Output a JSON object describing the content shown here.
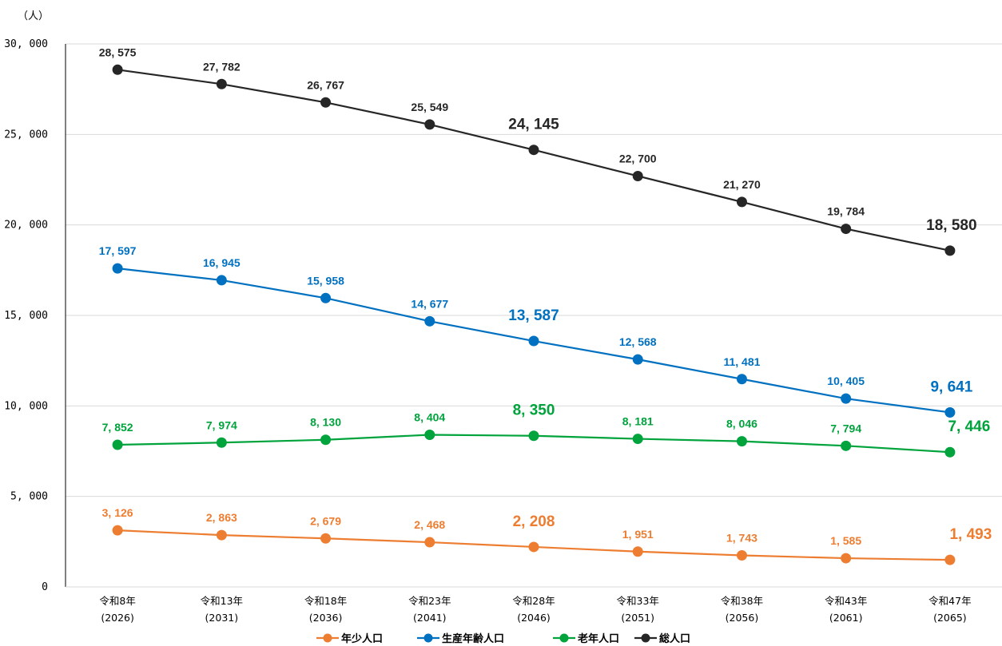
{
  "chart_data": {
    "type": "line",
    "unit_label": "（人）",
    "ylim": [
      0,
      30000
    ],
    "y_ticks": [
      {
        "value": 0,
        "label": "0"
      },
      {
        "value": 5000,
        "label": "5, 000"
      },
      {
        "value": 10000,
        "label": "10, 000"
      },
      {
        "value": 15000,
        "label": "15, 000"
      },
      {
        "value": 20000,
        "label": "20, 000"
      },
      {
        "value": 25000,
        "label": "25, 000"
      },
      {
        "value": 30000,
        "label": "30, 000"
      }
    ],
    "grid": true,
    "legend_position": "bottom",
    "categories": [
      {
        "era": "令和8年",
        "year": "(2026)"
      },
      {
        "era": "令和13年",
        "year": "(2031)"
      },
      {
        "era": "令和18年",
        "year": "(2036)"
      },
      {
        "era": "令和23年",
        "year": "(2041)"
      },
      {
        "era": "令和28年",
        "year": "(2046)"
      },
      {
        "era": "令和33年",
        "year": "(2051)"
      },
      {
        "era": "令和38年",
        "year": "(2056)"
      },
      {
        "era": "令和43年",
        "year": "(2061)"
      },
      {
        "era": "令和47年",
        "year": "(2065)"
      }
    ],
    "series": [
      {
        "name": "年少人口",
        "color": "#ED7D31",
        "values": [
          3126,
          2863,
          2679,
          2468,
          2208,
          1951,
          1743,
          1585,
          1493
        ],
        "labels": [
          "3, 126",
          "2, 863",
          "2, 679",
          "2, 468",
          "2, 208",
          "1, 951",
          "1, 743",
          "1, 585",
          "1, 493"
        ]
      },
      {
        "name": "生産年齢人口",
        "color": "#0070C0",
        "values": [
          17597,
          16945,
          15958,
          14677,
          13587,
          12568,
          11481,
          10405,
          9641
        ],
        "labels": [
          "17, 597",
          "16, 945",
          "15, 958",
          "14, 677",
          "13, 587",
          "12, 568",
          "11, 481",
          "10, 405",
          "9, 641"
        ]
      },
      {
        "name": "老年人口",
        "color": "#00A33C",
        "values": [
          7852,
          7974,
          8130,
          8404,
          8350,
          8181,
          8046,
          7794,
          7446
        ],
        "labels": [
          "7, 852",
          "7, 974",
          "8, 130",
          "8, 404",
          "8, 350",
          "8, 181",
          "8, 046",
          "7, 794",
          "7, 446"
        ]
      },
      {
        "name": "総人口",
        "color": "#262626",
        "values": [
          28575,
          27782,
          26767,
          25549,
          24145,
          22700,
          21270,
          19784,
          18580
        ],
        "labels": [
          "28, 575",
          "27, 782",
          "26, 767",
          "25, 549",
          "24, 145",
          "22, 700",
          "21, 270",
          "19, 784",
          "18, 580"
        ]
      }
    ]
  }
}
